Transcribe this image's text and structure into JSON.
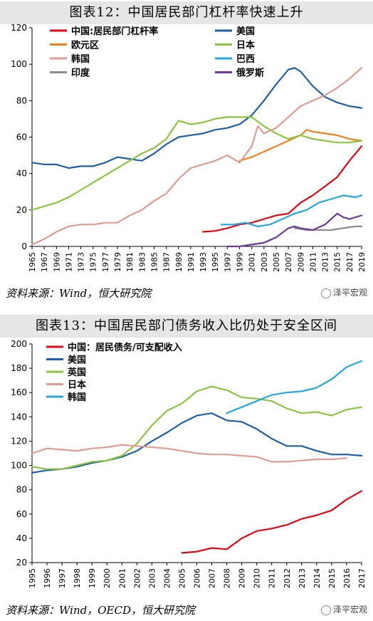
{
  "chart1": {
    "title": "图表12：中国居民部门杠杆率快速上升",
    "source": "资料来源：Wind，恒大研究院",
    "watermark": "泽平宏观",
    "chart_data": {
      "type": "line",
      "ylim": [
        0,
        120
      ],
      "yticks": [
        0,
        20,
        40,
        60,
        80,
        100,
        120
      ],
      "xlim": [
        1965,
        2019
      ],
      "xticks": [
        "1965",
        "1967",
        "1969",
        "1971",
        "1973",
        "1975",
        "1977",
        "1979",
        "1981",
        "1983",
        "1985",
        "1987",
        "1989",
        "1991",
        "1993",
        "1995",
        "1997",
        "1999",
        "2001",
        "2003",
        "2005",
        "2007",
        "2009",
        "2011",
        "2013",
        "2015",
        "2017",
        "2019"
      ],
      "legend_placement": "top",
      "series": [
        {
          "name": "中国:居民部门杠杆率",
          "color": "#e30613",
          "x": [
            1993,
            1995,
            1997,
            1999,
            2001,
            2003,
            2005,
            2007,
            2009,
            2011,
            2013,
            2015,
            2017,
            2019
          ],
          "y": [
            8,
            8.5,
            10,
            12,
            13,
            15,
            17,
            18,
            24,
            28,
            33,
            38,
            47,
            55
          ]
        },
        {
          "name": "美国",
          "color": "#1f5fa8",
          "x": [
            1965,
            1967,
            1969,
            1971,
            1973,
            1975,
            1977,
            1979,
            1981,
            1983,
            1985,
            1987,
            1989,
            1991,
            1993,
            1995,
            1997,
            1999,
            2001,
            2003,
            2005,
            2007,
            2008,
            2009,
            2011,
            2013,
            2015,
            2017,
            2019
          ],
          "y": [
            46,
            45,
            45,
            43,
            44,
            44,
            46,
            49,
            48,
            47,
            51,
            56,
            60,
            61,
            62,
            64,
            65,
            67,
            72,
            80,
            89,
            97,
            98,
            96,
            88,
            82,
            79,
            77,
            76
          ]
        },
        {
          "name": "欧元区",
          "color": "#f0821e",
          "x": [
            1999,
            2001,
            2003,
            2005,
            2007,
            2009,
            2010,
            2011,
            2013,
            2015,
            2017,
            2019
          ],
          "y": [
            47,
            49,
            52,
            55,
            58,
            61,
            64,
            63,
            62,
            61,
            59,
            58
          ]
        },
        {
          "name": "日本",
          "color": "#8cc63e",
          "x": [
            1965,
            1967,
            1969,
            1971,
            1973,
            1975,
            1977,
            1979,
            1981,
            1983,
            1985,
            1987,
            1989,
            1991,
            1993,
            1995,
            1997,
            1999,
            2001,
            2003,
            2005,
            2007,
            2009,
            2011,
            2013,
            2015,
            2017,
            2019
          ],
          "y": [
            20,
            22,
            24,
            27,
            31,
            35,
            39,
            43,
            47,
            51,
            54,
            59,
            69,
            67,
            68,
            70,
            71,
            71,
            71,
            66,
            62,
            59,
            61,
            59,
            58,
            57,
            57,
            58
          ]
        },
        {
          "name": "韩国",
          "color": "#e09b94",
          "x": [
            1965,
            1967,
            1969,
            1971,
            1973,
            1975,
            1977,
            1979,
            1981,
            1983,
            1985,
            1987,
            1989,
            1991,
            1993,
            1995,
            1997,
            1999,
            2001,
            2002,
            2003,
            2005,
            2007,
            2009,
            2011,
            2013,
            2015,
            2017,
            2019
          ],
          "y": [
            1,
            4,
            8,
            11,
            12,
            12,
            13,
            13,
            17,
            20,
            25,
            29,
            37,
            43,
            45,
            47,
            50,
            46,
            55,
            66,
            62,
            65,
            71,
            77,
            80,
            83,
            87,
            92,
            98
          ]
        },
        {
          "name": "巴西",
          "color": "#21a8e0",
          "x": [
            1996,
            1998,
            2000,
            2002,
            2004,
            2006,
            2008,
            2010,
            2012,
            2014,
            2016,
            2018,
            2019
          ],
          "y": [
            12,
            12,
            13,
            11,
            12,
            15,
            18,
            20,
            24,
            26,
            28,
            27,
            28
          ]
        },
        {
          "name": "印度",
          "color": "#8c8c8c",
          "x": [
            2008,
            2010,
            2012,
            2014,
            2016,
            2018,
            2019
          ],
          "y": [
            10,
            9,
            9,
            9,
            10,
            11,
            11
          ]
        },
        {
          "name": "俄罗斯",
          "color": "#6a3a9a",
          "x": [
            1997,
            1999,
            2001,
            2003,
            2005,
            2007,
            2008,
            2009,
            2011,
            2013,
            2014,
            2015,
            2016,
            2017,
            2019
          ],
          "y": [
            0,
            0,
            1,
            2,
            5,
            10,
            11,
            10,
            9,
            12,
            15,
            18,
            16,
            15,
            17
          ]
        }
      ]
    }
  },
  "chart2": {
    "title": "图表13：中国居民部门债务收入比仍处于安全区间",
    "source": "资料来源：Wind，OECD，恒大研究院",
    "watermark": "泽平宏观",
    "chart_data": {
      "type": "line",
      "ylim": [
        20,
        200
      ],
      "yticks": [
        20,
        40,
        60,
        80,
        100,
        120,
        140,
        160,
        180,
        200
      ],
      "xlim": [
        1995,
        2017
      ],
      "xticks": [
        "1995",
        "1996",
        "1997",
        "1998",
        "1999",
        "2000",
        "2001",
        "2002",
        "2003",
        "2004",
        "2005",
        "2006",
        "2007",
        "2008",
        "2009",
        "2010",
        "2011",
        "2012",
        "2013",
        "2014",
        "2015",
        "2016",
        "2017"
      ],
      "legend_placement": "top-left",
      "series": [
        {
          "name": "中国：居民债务/可支配收入",
          "color": "#e30613",
          "x": [
            2005,
            2006,
            2007,
            2008,
            2009,
            2010,
            2011,
            2012,
            2013,
            2014,
            2015,
            2016,
            2017
          ],
          "y": [
            28,
            29,
            32,
            31,
            40,
            46,
            48,
            51,
            56,
            59,
            63,
            72,
            79
          ]
        },
        {
          "name": "美国",
          "color": "#1f5fa8",
          "x": [
            1995,
            1996,
            1997,
            1998,
            1999,
            2000,
            2001,
            2002,
            2003,
            2004,
            2005,
            2006,
            2007,
            2008,
            2009,
            2010,
            2011,
            2012,
            2013,
            2014,
            2015,
            2016,
            2017
          ],
          "y": [
            94,
            96,
            97,
            99,
            102,
            104,
            107,
            112,
            120,
            127,
            135,
            141,
            143,
            137,
            136,
            130,
            122,
            116,
            116,
            112,
            109,
            109,
            108
          ]
        },
        {
          "name": "英国",
          "color": "#8cc63e",
          "x": [
            1995,
            1996,
            1997,
            1998,
            1999,
            2000,
            2001,
            2002,
            2003,
            2004,
            2005,
            2006,
            2007,
            2008,
            2009,
            2010,
            2011,
            2012,
            2013,
            2014,
            2015,
            2016,
            2017
          ],
          "y": [
            99,
            97,
            97,
            100,
            103,
            104,
            108,
            118,
            133,
            145,
            151,
            161,
            165,
            162,
            156,
            155,
            153,
            147,
            143,
            144,
            141,
            146,
            148
          ]
        },
        {
          "name": "日本",
          "color": "#e09b94",
          "x": [
            1995,
            1996,
            1997,
            1998,
            1999,
            2000,
            2001,
            2002,
            2003,
            2004,
            2005,
            2006,
            2007,
            2008,
            2009,
            2010,
            2011,
            2012,
            2013,
            2014,
            2015,
            2016
          ],
          "y": [
            110,
            114,
            113,
            112,
            114,
            115,
            117,
            116,
            115,
            114,
            112,
            110,
            109,
            109,
            108,
            107,
            103,
            103,
            104,
            105,
            105,
            106
          ]
        },
        {
          "name": "韩国",
          "color": "#21a8e0",
          "x": [
            2008,
            2009,
            2010,
            2011,
            2012,
            2013,
            2014,
            2015,
            2016,
            2017
          ],
          "y": [
            143,
            148,
            153,
            158,
            160,
            161,
            164,
            171,
            181,
            186
          ]
        }
      ]
    }
  }
}
